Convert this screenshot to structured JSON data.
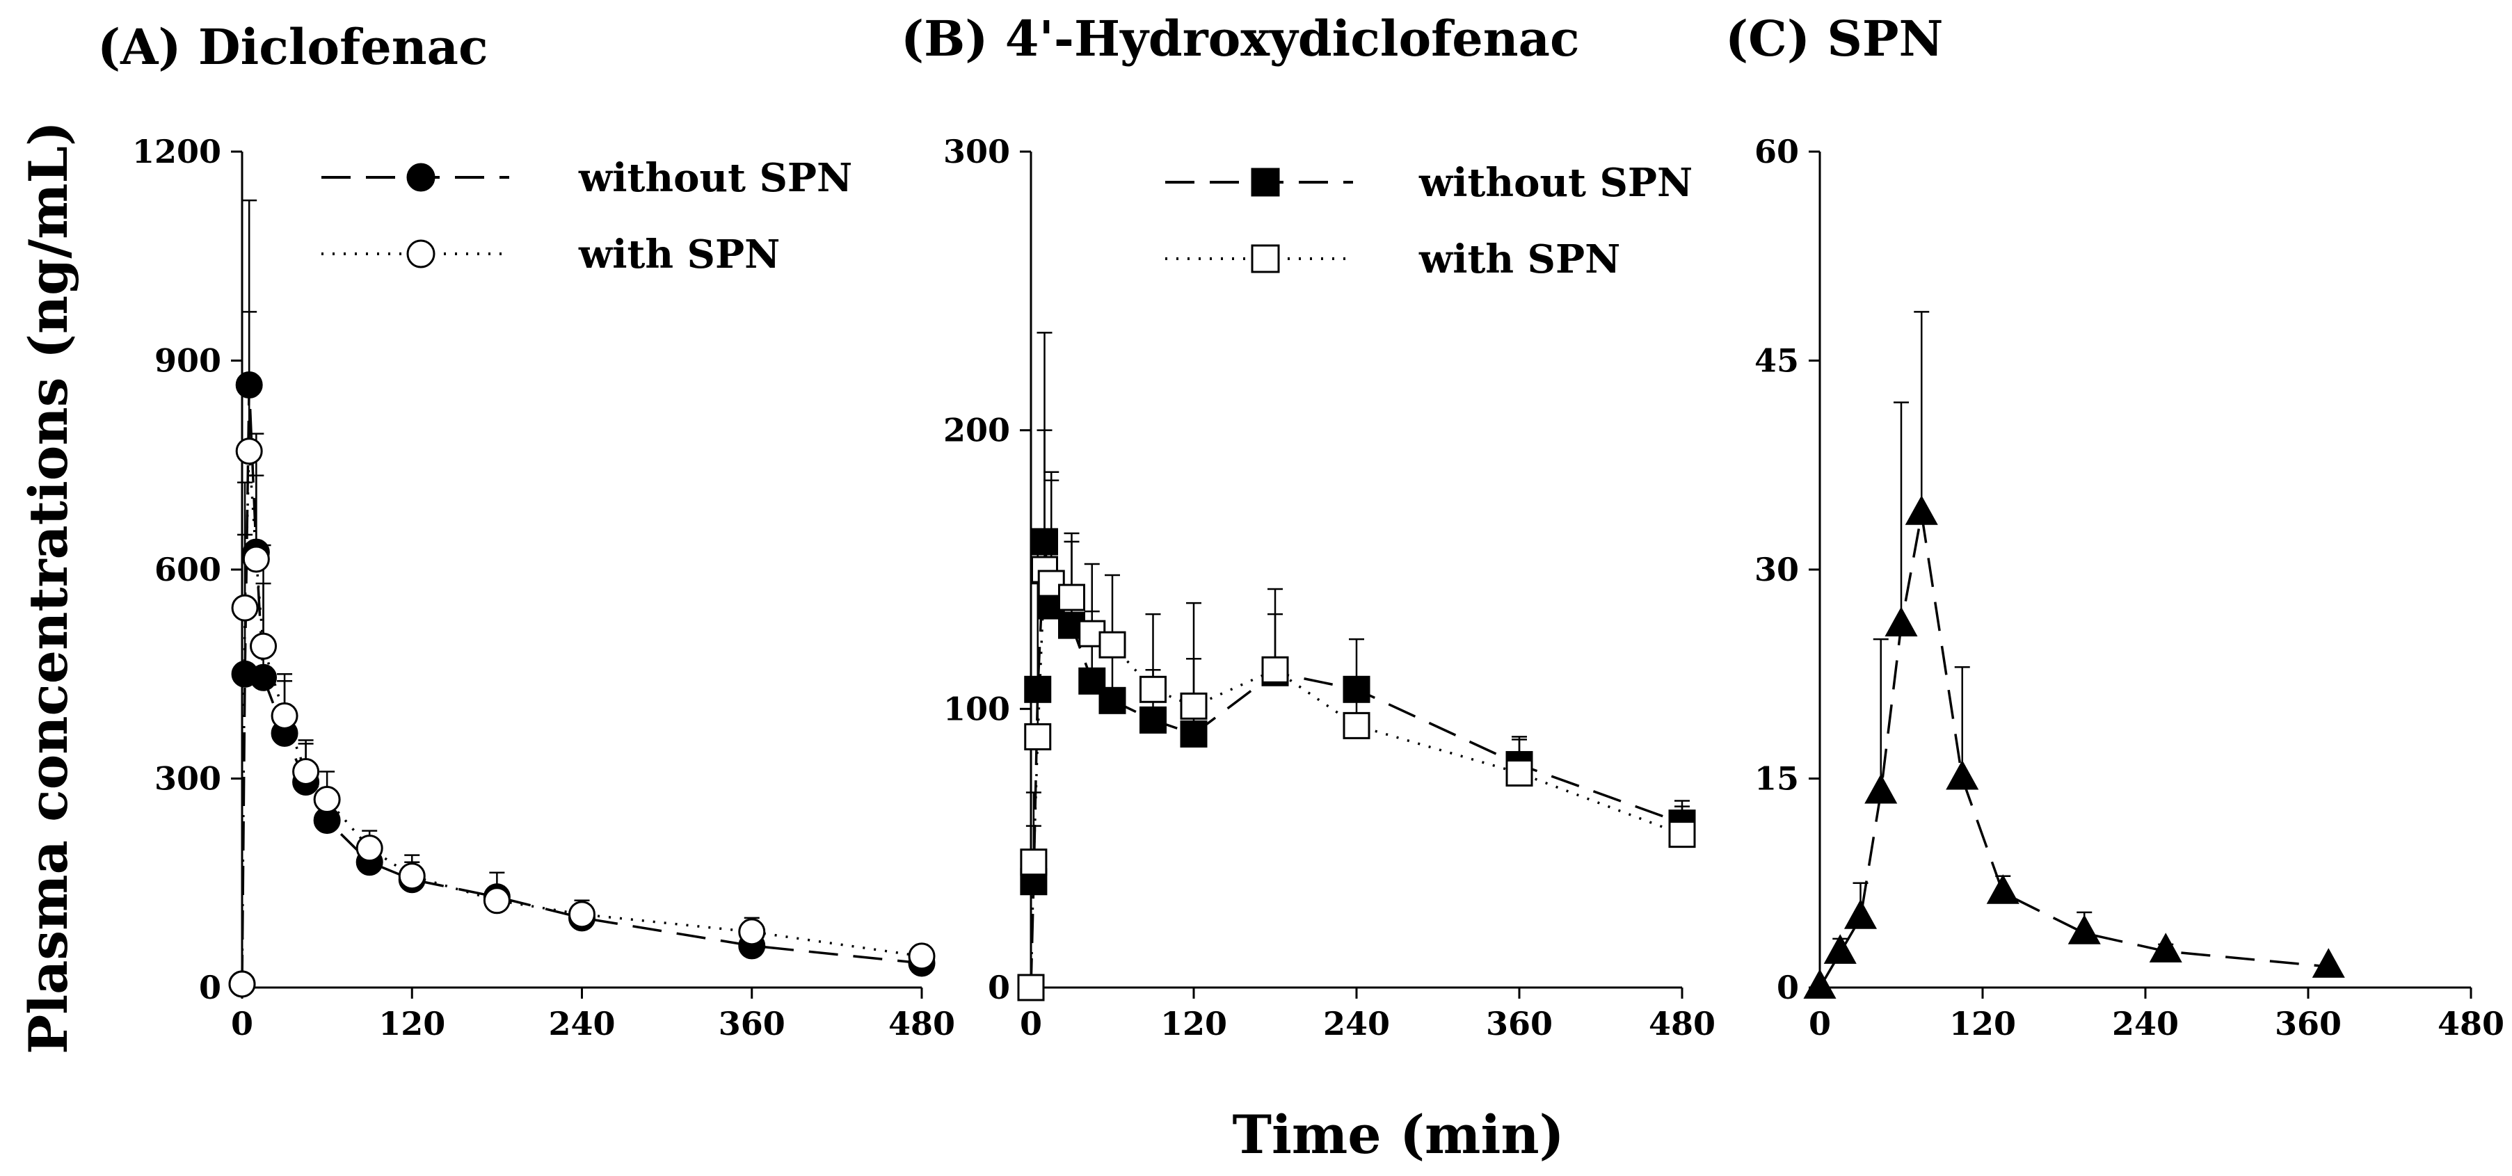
{
  "figure": {
    "ylabel": "Plasma concentrations (ng/mL)",
    "xlabel": "Time (min)"
  },
  "chart_data": [
    {
      "type": "line",
      "title": "(A) Diclofenac",
      "xlim": [
        0,
        480
      ],
      "ylim": [
        0,
        1200
      ],
      "xticks": [
        0,
        120,
        240,
        360,
        480
      ],
      "yticks": [
        0,
        300,
        600,
        900,
        1200
      ],
      "xtick_labels": [
        "0",
        "120",
        "240",
        "360",
        "480"
      ],
      "ytick_labels": [
        "0",
        "300",
        "600",
        "900",
        "1200"
      ],
      "series": [
        {
          "name": "without SPN",
          "marker": "circle",
          "filled": true,
          "line": "dashed",
          "x": [
            0,
            2,
            5,
            10,
            15,
            30,
            45,
            60,
            90,
            120,
            180,
            240,
            360,
            480
          ],
          "y": [
            5,
            450,
            865,
            625,
            445,
            365,
            295,
            240,
            180,
            155,
            130,
            100,
            60,
            35
          ],
          "err": [
            0,
            200,
            265,
            170,
            190,
            75,
            55,
            40,
            25,
            25,
            35,
            25,
            10,
            5
          ]
        },
        {
          "name": "with SPN",
          "marker": "circle",
          "filled": false,
          "line": "dotted",
          "x": [
            0,
            2,
            5,
            10,
            15,
            30,
            45,
            60,
            90,
            120,
            180,
            240,
            360,
            480
          ],
          "y": [
            5,
            545,
            770,
            615,
            490,
            390,
            310,
            270,
            200,
            160,
            125,
            105,
            80,
            45
          ],
          "err": [
            0,
            180,
            200,
            120,
            90,
            60,
            45,
            40,
            25,
            30,
            20,
            20,
            20,
            10
          ]
        }
      ]
    },
    {
      "type": "line",
      "title": "(B) 4'-Hydroxydiclofenac",
      "xlim": [
        0,
        480
      ],
      "ylim": [
        0,
        300
      ],
      "xticks": [
        0,
        120,
        240,
        360,
        480
      ],
      "yticks": [
        0,
        100,
        200,
        300
      ],
      "xtick_labels": [
        "0",
        "120",
        "240",
        "360",
        "480"
      ],
      "ytick_labels": [
        "0",
        "100",
        "200",
        "300"
      ],
      "series": [
        {
          "name": "without SPN",
          "marker": "square",
          "filled": true,
          "line": "dashed",
          "x": [
            0,
            2,
            5,
            10,
            15,
            30,
            45,
            60,
            90,
            120,
            180,
            240,
            360,
            480
          ],
          "y": [
            0,
            38,
            107,
            160,
            137,
            130,
            110,
            103,
            96,
            91,
            113,
            107,
            80,
            59
          ],
          "err": [
            0,
            20,
            55,
            75,
            45,
            30,
            25,
            23,
            18,
            27,
            30,
            18,
            10,
            8
          ]
        },
        {
          "name": "with SPN",
          "marker": "square",
          "filled": false,
          "line": "dotted",
          "x": [
            0,
            2,
            5,
            10,
            15,
            30,
            45,
            60,
            90,
            120,
            180,
            240,
            360,
            480
          ],
          "y": [
            0,
            45,
            90,
            150,
            145,
            140,
            127,
            123,
            107,
            101,
            114,
            94,
            77,
            55
          ],
          "err": [
            0,
            25,
            55,
            50,
            40,
            23,
            25,
            25,
            27,
            37,
            20,
            17,
            12,
            10
          ]
        }
      ]
    },
    {
      "type": "line",
      "title": "(C) SPN",
      "xlim": [
        0,
        480
      ],
      "ylim": [
        0,
        60
      ],
      "xticks": [
        0,
        120,
        240,
        360,
        480
      ],
      "yticks": [
        0,
        15,
        30,
        45,
        60
      ],
      "xtick_labels": [
        "0",
        "120",
        "240",
        "360",
        "480"
      ],
      "ytick_labels": [
        "0",
        "15",
        "30",
        "45",
        "60"
      ],
      "series": [
        {
          "name": "SPN",
          "marker": "triangle",
          "filled": true,
          "line": "dashed",
          "x": [
            0,
            15,
            30,
            45,
            60,
            75,
            105,
            135,
            195,
            255,
            375
          ],
          "y": [
            0,
            2.5,
            5,
            14,
            26,
            34,
            15,
            6.8,
            3.9,
            2.6,
            1.5
          ],
          "err": [
            0,
            1,
            2.5,
            11,
            16,
            14.5,
            8,
            1.2,
            1.5,
            0.5,
            0.3
          ]
        }
      ]
    }
  ]
}
